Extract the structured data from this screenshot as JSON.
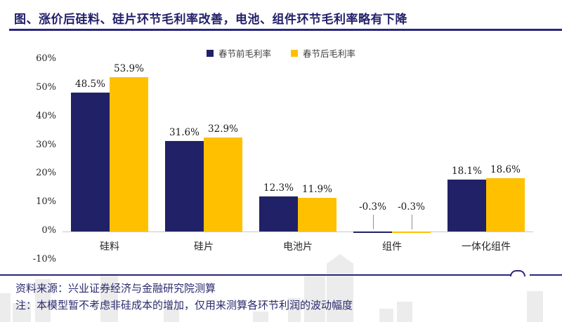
{
  "title": "图、涨价后硅料、硅片环节毛利率改善，电池、组件环节毛利率略有下降",
  "chart_data": {
    "type": "bar",
    "categories": [
      "硅料",
      "硅片",
      "电池片",
      "组件",
      "一体化组件"
    ],
    "series": [
      {
        "name": "春节前毛利率",
        "color": "#212168",
        "values": [
          48.5,
          31.6,
          12.3,
          -0.3,
          18.1
        ]
      },
      {
        "name": "春节后毛利率",
        "color": "#FFC000",
        "values": [
          53.9,
          32.9,
          11.9,
          -0.3,
          18.6
        ]
      }
    ],
    "value_suffix": "%",
    "ylim": [
      -10,
      60
    ],
    "yticks": [
      "60%",
      "50%",
      "40%",
      "30%",
      "20%",
      "10%",
      "0%",
      "-10%"
    ],
    "grid": false,
    "legend_position": "top-center"
  },
  "footer": {
    "source": "资料来源：兴业证券经济与金融研究院测算",
    "note": "注：本模型暂不考虑非硅成本的增加，仅用来测算各环节利润的波动幅度"
  },
  "colors": {
    "title_navy": "#23206B",
    "bar_navy": "#212168",
    "bar_gold": "#FFC000",
    "footer_text_navy": "#2A2A6E",
    "baseline_gray": "#C8C8C8",
    "watermark_gray": "#ECECEC"
  }
}
